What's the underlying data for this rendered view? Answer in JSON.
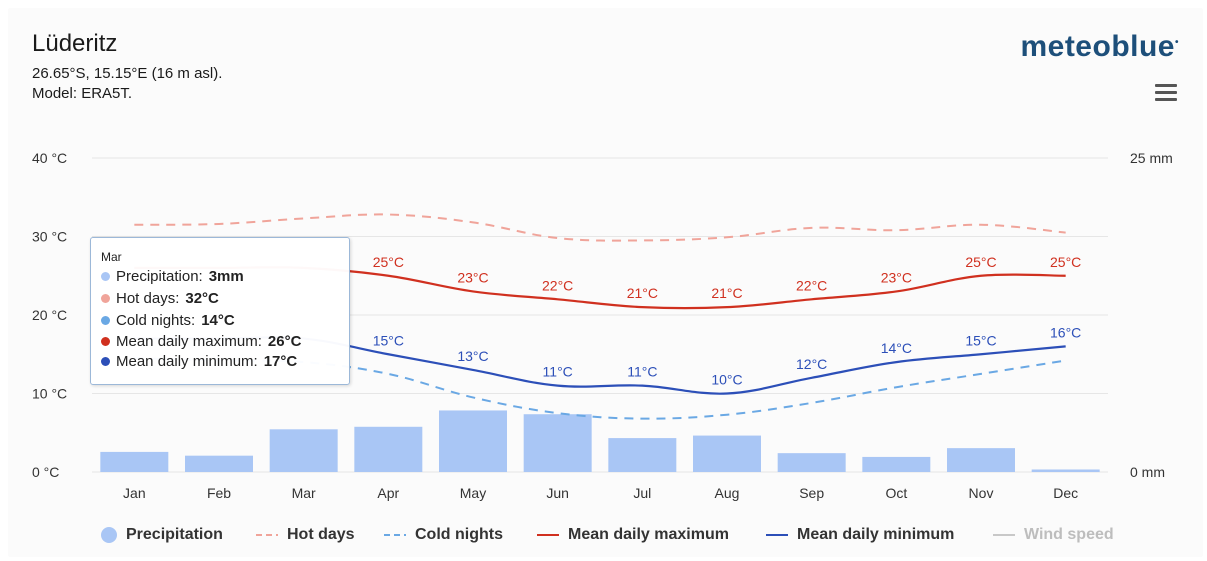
{
  "header": {
    "title": "Lüderitz",
    "coords": "26.65°S, 15.15°E (16 m asl).",
    "model": "Model: ERA5T.",
    "logo": "meteoblue"
  },
  "tooltip": {
    "month": "Mar",
    "rows": [
      {
        "label": "Precipitation: ",
        "value": "3mm",
        "color": "#a9c6f5"
      },
      {
        "label": "Hot days: ",
        "value": "32°C",
        "color": "#f0a49a"
      },
      {
        "label": "Cold nights: ",
        "value": "14°C",
        "color": "#6aa8e4"
      },
      {
        "label": "Mean daily maximum: ",
        "value": "26°C",
        "color": "#d0301f"
      },
      {
        "label": "Mean daily minimum: ",
        "value": "17°C",
        "color": "#2c4fb8"
      }
    ]
  },
  "legend": [
    {
      "label": "Precipitation",
      "symbol": "circle",
      "color": "#a9c6f5",
      "dim": false
    },
    {
      "label": "Hot days",
      "symbol": "dash",
      "color": "#f0a49a",
      "dim": false
    },
    {
      "label": "Cold nights",
      "symbol": "dash",
      "color": "#6aa8e4",
      "dim": false
    },
    {
      "label": "Mean daily maximum",
      "symbol": "line",
      "color": "#d0301f",
      "dim": false
    },
    {
      "label": "Mean daily minimum",
      "symbol": "line",
      "color": "#2c4fb8",
      "dim": false
    },
    {
      "label": "Wind speed",
      "symbol": "line",
      "color": "#c8c8c8",
      "dim": true
    }
  ],
  "chart_data": {
    "type": "bar+line",
    "categories": [
      "Jan",
      "Feb",
      "Mar",
      "Apr",
      "May",
      "Jun",
      "Jul",
      "Aug",
      "Sep",
      "Oct",
      "Nov",
      "Dec"
    ],
    "left_axis": {
      "ticks": [
        "0 °C",
        "10 °C",
        "20 °C",
        "30 °C",
        "40 °C"
      ],
      "ylim": [
        0,
        40
      ],
      "unit": "°C"
    },
    "right_axis": {
      "ticks": [
        "0 mm",
        "25 mm"
      ],
      "ylim": [
        0,
        25
      ],
      "unit": "mm"
    },
    "grid": true,
    "series": [
      {
        "name": "Precipitation",
        "kind": "bar",
        "axis": "right",
        "color": "#a9c6f5",
        "values": [
          1.6,
          1.3,
          3.4,
          3.6,
          4.9,
          4.6,
          2.7,
          2.9,
          1.5,
          1.2,
          1.9,
          0.2
        ]
      },
      {
        "name": "Hot days",
        "kind": "dashed-line",
        "axis": "left",
        "color": "#f0a49a",
        "values": [
          31.5,
          31.6,
          32.3,
          32.8,
          31.8,
          29.8,
          29.5,
          29.9,
          31.1,
          30.8,
          31.5,
          30.5
        ]
      },
      {
        "name": "Cold nights",
        "kind": "dashed-line",
        "axis": "left",
        "color": "#6aa8e4",
        "values": [
          14.5,
          14.2,
          14.0,
          12.5,
          9.5,
          7.5,
          6.8,
          7.3,
          8.8,
          10.8,
          12.5,
          14.2
        ]
      },
      {
        "name": "Mean daily maximum",
        "kind": "line",
        "axis": "left",
        "color": "#d0301f",
        "values": [
          26,
          26,
          26,
          25,
          23,
          22,
          21,
          21,
          22,
          23,
          25,
          25
        ],
        "labels": [
          "",
          "",
          "",
          "25°C",
          "23°C",
          "22°C",
          "21°C",
          "21°C",
          "22°C",
          "23°C",
          "25°C",
          "25°C"
        ]
      },
      {
        "name": "Mean daily minimum",
        "kind": "line",
        "axis": "left",
        "color": "#2c4fb8",
        "values": [
          17,
          17,
          17,
          15,
          13,
          11,
          11,
          10,
          12,
          14,
          15,
          16
        ],
        "labels": [
          "",
          "",
          "",
          "15°C",
          "13°C",
          "11°C",
          "11°C",
          "10°C",
          "12°C",
          "14°C",
          "15°C",
          "16°C"
        ]
      }
    ]
  }
}
